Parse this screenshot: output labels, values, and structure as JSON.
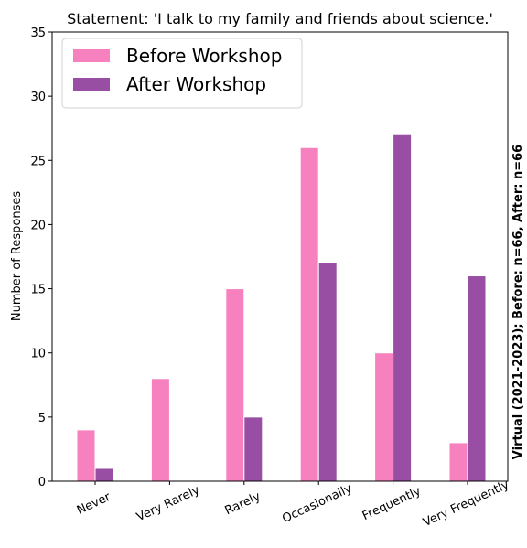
{
  "chart_data": {
    "type": "bar",
    "title": "Statement: 'I talk to my family and friends about science.'",
    "y_label": "Number of Responses",
    "annotation": "Virtual (2021-2023); Before: n=66, After: n=66",
    "categories": [
      "Never",
      "Very Rarely",
      "Rarely",
      "Occasionally",
      "Frequently",
      "Very Frequently"
    ],
    "series": [
      {
        "name": "Before Workshop",
        "color": "#f781bf",
        "values": [
          4,
          8,
          15,
          26,
          10,
          3
        ]
      },
      {
        "name": "After Workshop",
        "color": "#984ea3",
        "values": [
          1,
          0,
          5,
          17,
          27,
          16
        ]
      }
    ],
    "ylim": [
      0,
      35
    ],
    "yticks": [
      0,
      5,
      10,
      15,
      20,
      25,
      30,
      35
    ],
    "legend": "upper left",
    "grid": false
  }
}
